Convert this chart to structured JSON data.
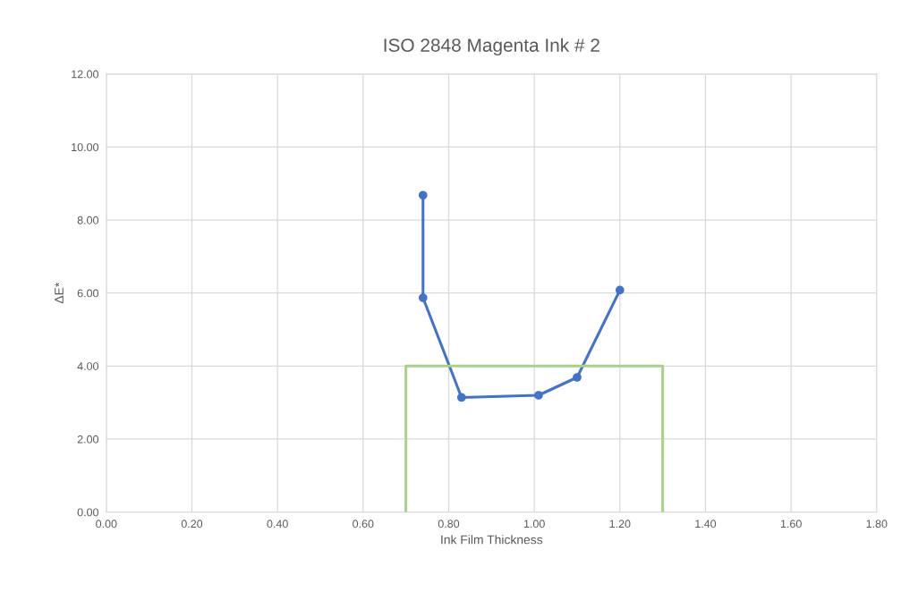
{
  "chart_data": {
    "type": "line",
    "title": "ISO 2848 Magenta Ink # 2",
    "xlabel": "Ink Film Thickness",
    "ylabel": "ΔE*",
    "series": [
      {
        "color": "#4472c4",
        "marker": "circle",
        "x": [
          0.74,
          0.74,
          0.83,
          1.01,
          1.1,
          1.2
        ],
        "values": [
          8.68,
          5.87,
          3.14,
          3.2,
          3.69,
          6.08
        ]
      },
      {
        "color": "#a9d18e",
        "marker": "none",
        "x": [
          0.7,
          0.7,
          1.3,
          1.3
        ],
        "values": [
          0,
          4,
          4,
          0
        ]
      }
    ],
    "xlim": [
      0,
      1.8
    ],
    "ylim": [
      0,
      12
    ],
    "xticks": [
      {
        "value": 0,
        "label": "0.00"
      },
      {
        "value": 0.2,
        "label": "0.20"
      },
      {
        "value": 0.4,
        "label": "0.40"
      },
      {
        "value": 0.6,
        "label": "0.60"
      },
      {
        "value": 0.8,
        "label": "0.80"
      },
      {
        "value": 1.0,
        "label": "1.00"
      },
      {
        "value": 1.2,
        "label": "1.20"
      },
      {
        "value": 1.4,
        "label": "1.40"
      },
      {
        "value": 1.6,
        "label": "1.60"
      },
      {
        "value": 1.8,
        "label": "1.80"
      }
    ],
    "yticks": [
      {
        "value": 0,
        "label": "0.00"
      },
      {
        "value": 2,
        "label": "2.00"
      },
      {
        "value": 4,
        "label": "4.00"
      },
      {
        "value": 6,
        "label": "6.00"
      },
      {
        "value": 8,
        "label": "8.00"
      },
      {
        "value": 10,
        "label": "10.00"
      },
      {
        "value": 12,
        "label": "12.00"
      }
    ],
    "grid": true
  }
}
